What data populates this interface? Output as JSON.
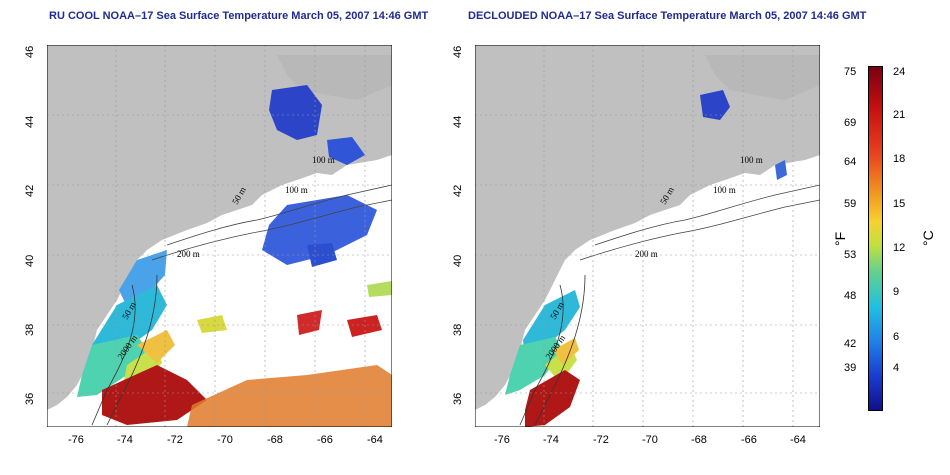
{
  "titles": {
    "left": "RU COOL NOAA–17 Sea Surface Temperature March 05, 2007 14:46 GMT",
    "right": "DECLOUDED NOAA–17 Sea Surface Temperature March 05, 2007 14:46 GMT"
  },
  "axes": {
    "lon_ticks": [
      "-76",
      "-74",
      "-72",
      "-70",
      "-68",
      "-66",
      "-64"
    ],
    "lat_ticks": [
      "36",
      "38",
      "40",
      "42",
      "44",
      "46"
    ]
  },
  "contour_labels": [
    "100 m",
    "50 m",
    "100 m",
    "50 m",
    "200 m",
    "50 m",
    "2000 m"
  ],
  "colorbar": {
    "fahrenheit_ticks": [
      "75",
      "69",
      "64",
      "59",
      "53",
      "48",
      "42",
      "39"
    ],
    "celsius_ticks": [
      "24",
      "21",
      "18",
      "15",
      "12",
      "9",
      "6",
      "4"
    ],
    "unit_f": "°F",
    "unit_c": "°C"
  },
  "colors": {
    "land": "#c0c0c0",
    "ocean": "#ffffff",
    "title": "#1f2b8f"
  }
}
